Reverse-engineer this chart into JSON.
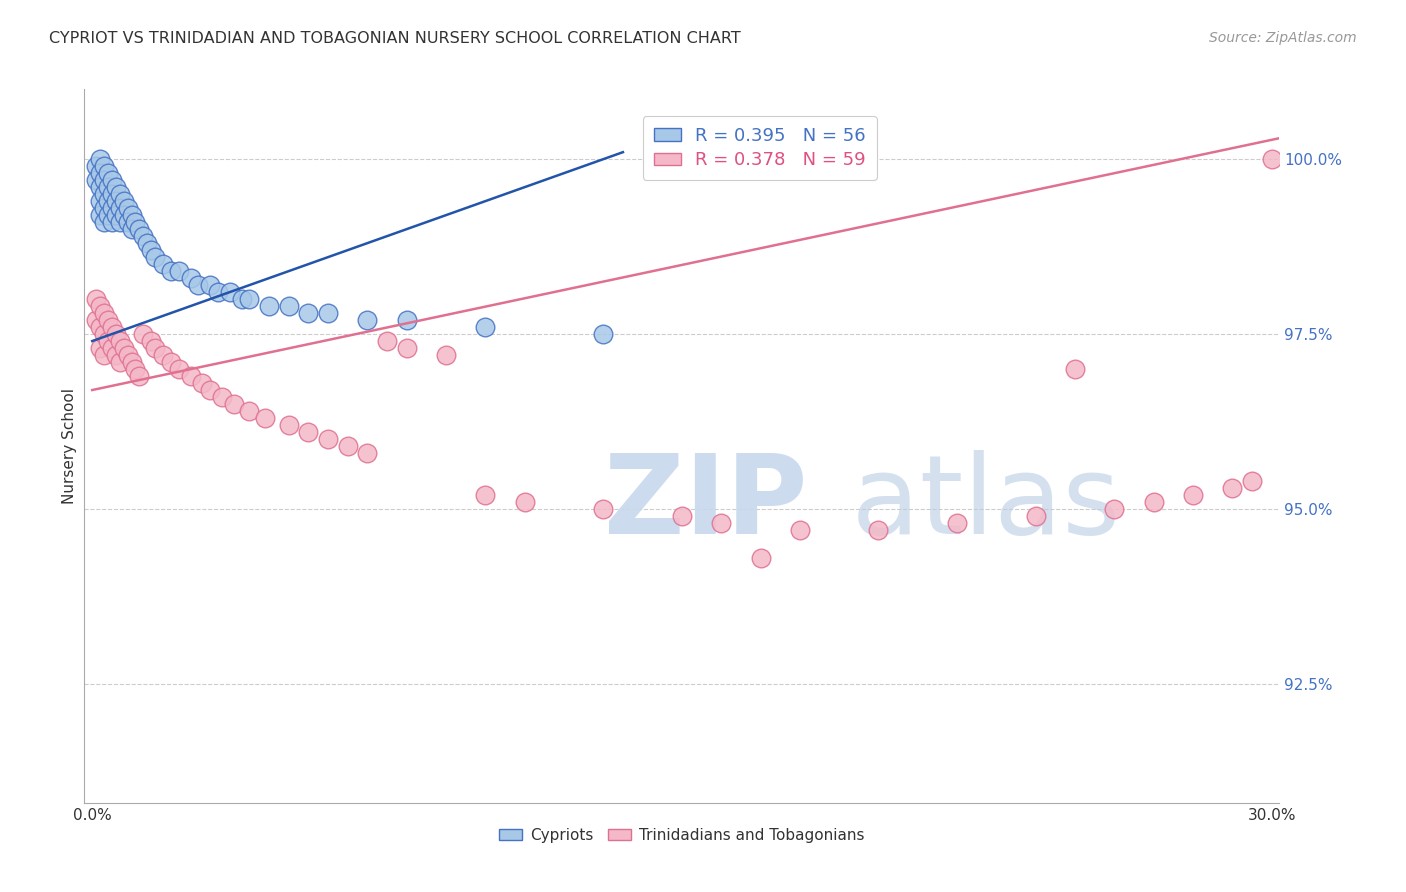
{
  "title": "CYPRIOT VS TRINIDADIAN AND TOBAGONIAN NURSERY SCHOOL CORRELATION CHART",
  "source": "Source: ZipAtlas.com",
  "ylabel": "Nursery School",
  "ytick_labels": [
    "100.0%",
    "97.5%",
    "95.0%",
    "92.5%"
  ],
  "ytick_values": [
    1.0,
    0.975,
    0.95,
    0.925
  ],
  "xlim": [
    -0.002,
    0.302
  ],
  "ylim": [
    0.908,
    1.01
  ],
  "blue_color": "#a8c8e8",
  "blue_edge_color": "#4472c4",
  "blue_line_color": "#2255aa",
  "pink_color": "#f4b8c8",
  "pink_edge_color": "#e07090",
  "pink_line_color": "#e07090",
  "grid_color": "#cccccc",
  "background": "#ffffff",
  "blue_trend_x": [
    0.0,
    0.135
  ],
  "blue_trend_y": [
    0.974,
    1.001
  ],
  "pink_trend_x": [
    0.0,
    0.302
  ],
  "pink_trend_y": [
    0.967,
    1.003
  ],
  "cypriot_x": [
    0.001,
    0.001,
    0.002,
    0.002,
    0.002,
    0.002,
    0.002,
    0.003,
    0.003,
    0.003,
    0.003,
    0.003,
    0.004,
    0.004,
    0.004,
    0.004,
    0.005,
    0.005,
    0.005,
    0.005,
    0.006,
    0.006,
    0.006,
    0.007,
    0.007,
    0.007,
    0.008,
    0.008,
    0.009,
    0.009,
    0.01,
    0.01,
    0.011,
    0.012,
    0.013,
    0.014,
    0.015,
    0.016,
    0.018,
    0.02,
    0.022,
    0.025,
    0.027,
    0.03,
    0.032,
    0.035,
    0.038,
    0.04,
    0.045,
    0.05,
    0.055,
    0.06,
    0.07,
    0.08,
    0.1,
    0.13
  ],
  "cypriot_y": [
    0.999,
    0.997,
    1.0,
    0.998,
    0.996,
    0.994,
    0.992,
    0.999,
    0.997,
    0.995,
    0.993,
    0.991,
    0.998,
    0.996,
    0.994,
    0.992,
    0.997,
    0.995,
    0.993,
    0.991,
    0.996,
    0.994,
    0.992,
    0.995,
    0.993,
    0.991,
    0.994,
    0.992,
    0.993,
    0.991,
    0.992,
    0.99,
    0.991,
    0.99,
    0.989,
    0.988,
    0.987,
    0.986,
    0.985,
    0.984,
    0.984,
    0.983,
    0.982,
    0.982,
    0.981,
    0.981,
    0.98,
    0.98,
    0.979,
    0.979,
    0.978,
    0.978,
    0.977,
    0.977,
    0.976,
    0.975
  ],
  "trinidad_x": [
    0.001,
    0.001,
    0.002,
    0.002,
    0.002,
    0.003,
    0.003,
    0.003,
    0.004,
    0.004,
    0.005,
    0.005,
    0.006,
    0.006,
    0.007,
    0.007,
    0.008,
    0.009,
    0.01,
    0.011,
    0.012,
    0.013,
    0.015,
    0.016,
    0.018,
    0.02,
    0.022,
    0.025,
    0.028,
    0.03,
    0.033,
    0.036,
    0.04,
    0.044,
    0.05,
    0.055,
    0.06,
    0.065,
    0.07,
    0.075,
    0.08,
    0.09,
    0.1,
    0.11,
    0.13,
    0.15,
    0.16,
    0.18,
    0.2,
    0.22,
    0.24,
    0.26,
    0.27,
    0.28,
    0.29,
    0.295,
    0.3,
    0.25,
    0.17
  ],
  "trinidad_y": [
    0.98,
    0.977,
    0.979,
    0.976,
    0.973,
    0.978,
    0.975,
    0.972,
    0.977,
    0.974,
    0.976,
    0.973,
    0.975,
    0.972,
    0.974,
    0.971,
    0.973,
    0.972,
    0.971,
    0.97,
    0.969,
    0.975,
    0.974,
    0.973,
    0.972,
    0.971,
    0.97,
    0.969,
    0.968,
    0.967,
    0.966,
    0.965,
    0.964,
    0.963,
    0.962,
    0.961,
    0.96,
    0.959,
    0.958,
    0.974,
    0.973,
    0.972,
    0.952,
    0.951,
    0.95,
    0.949,
    0.948,
    0.947,
    0.947,
    0.948,
    0.949,
    0.95,
    0.951,
    0.952,
    0.953,
    0.954,
    1.0,
    0.97,
    0.943
  ]
}
